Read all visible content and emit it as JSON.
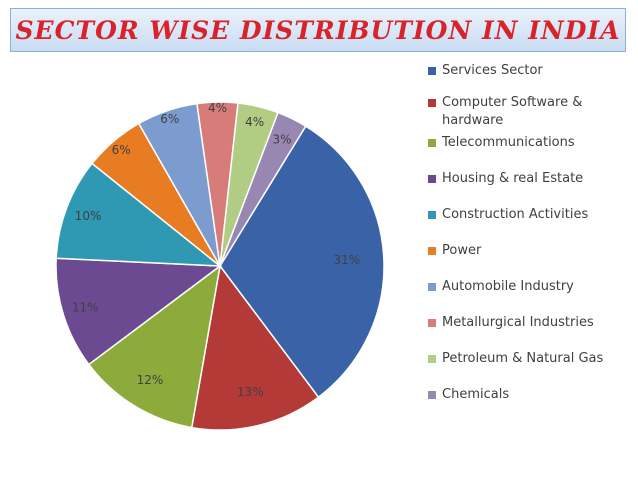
{
  "title": "SECTOR WISE DISTRIBUTION IN INDIA",
  "chart_data": {
    "type": "pie",
    "categories": [
      "Services Sector",
      "Computer Software & hardware",
      "Telecommunications",
      "Housing & real Estate",
      "Construction Activities",
      "Power",
      "Automobile Industry",
      "Metallurgical Industries",
      "Petroleum & Natural Gas",
      "Chemicals"
    ],
    "values": [
      31,
      13,
      12,
      11,
      10,
      6,
      6,
      4,
      4,
      3
    ],
    "labels": [
      "31%",
      "13%",
      "12%",
      "11%",
      "10%",
      "6%",
      "6%",
      "4%",
      "4%",
      "3%"
    ],
    "colors": [
      "#3a62a6",
      "#b43a37",
      "#8cab3a",
      "#6c4a92",
      "#2f98b2",
      "#e87c22",
      "#7c9ccf",
      "#d77c79",
      "#b1cc83",
      "#9886b3"
    ],
    "legend_position": "right"
  }
}
